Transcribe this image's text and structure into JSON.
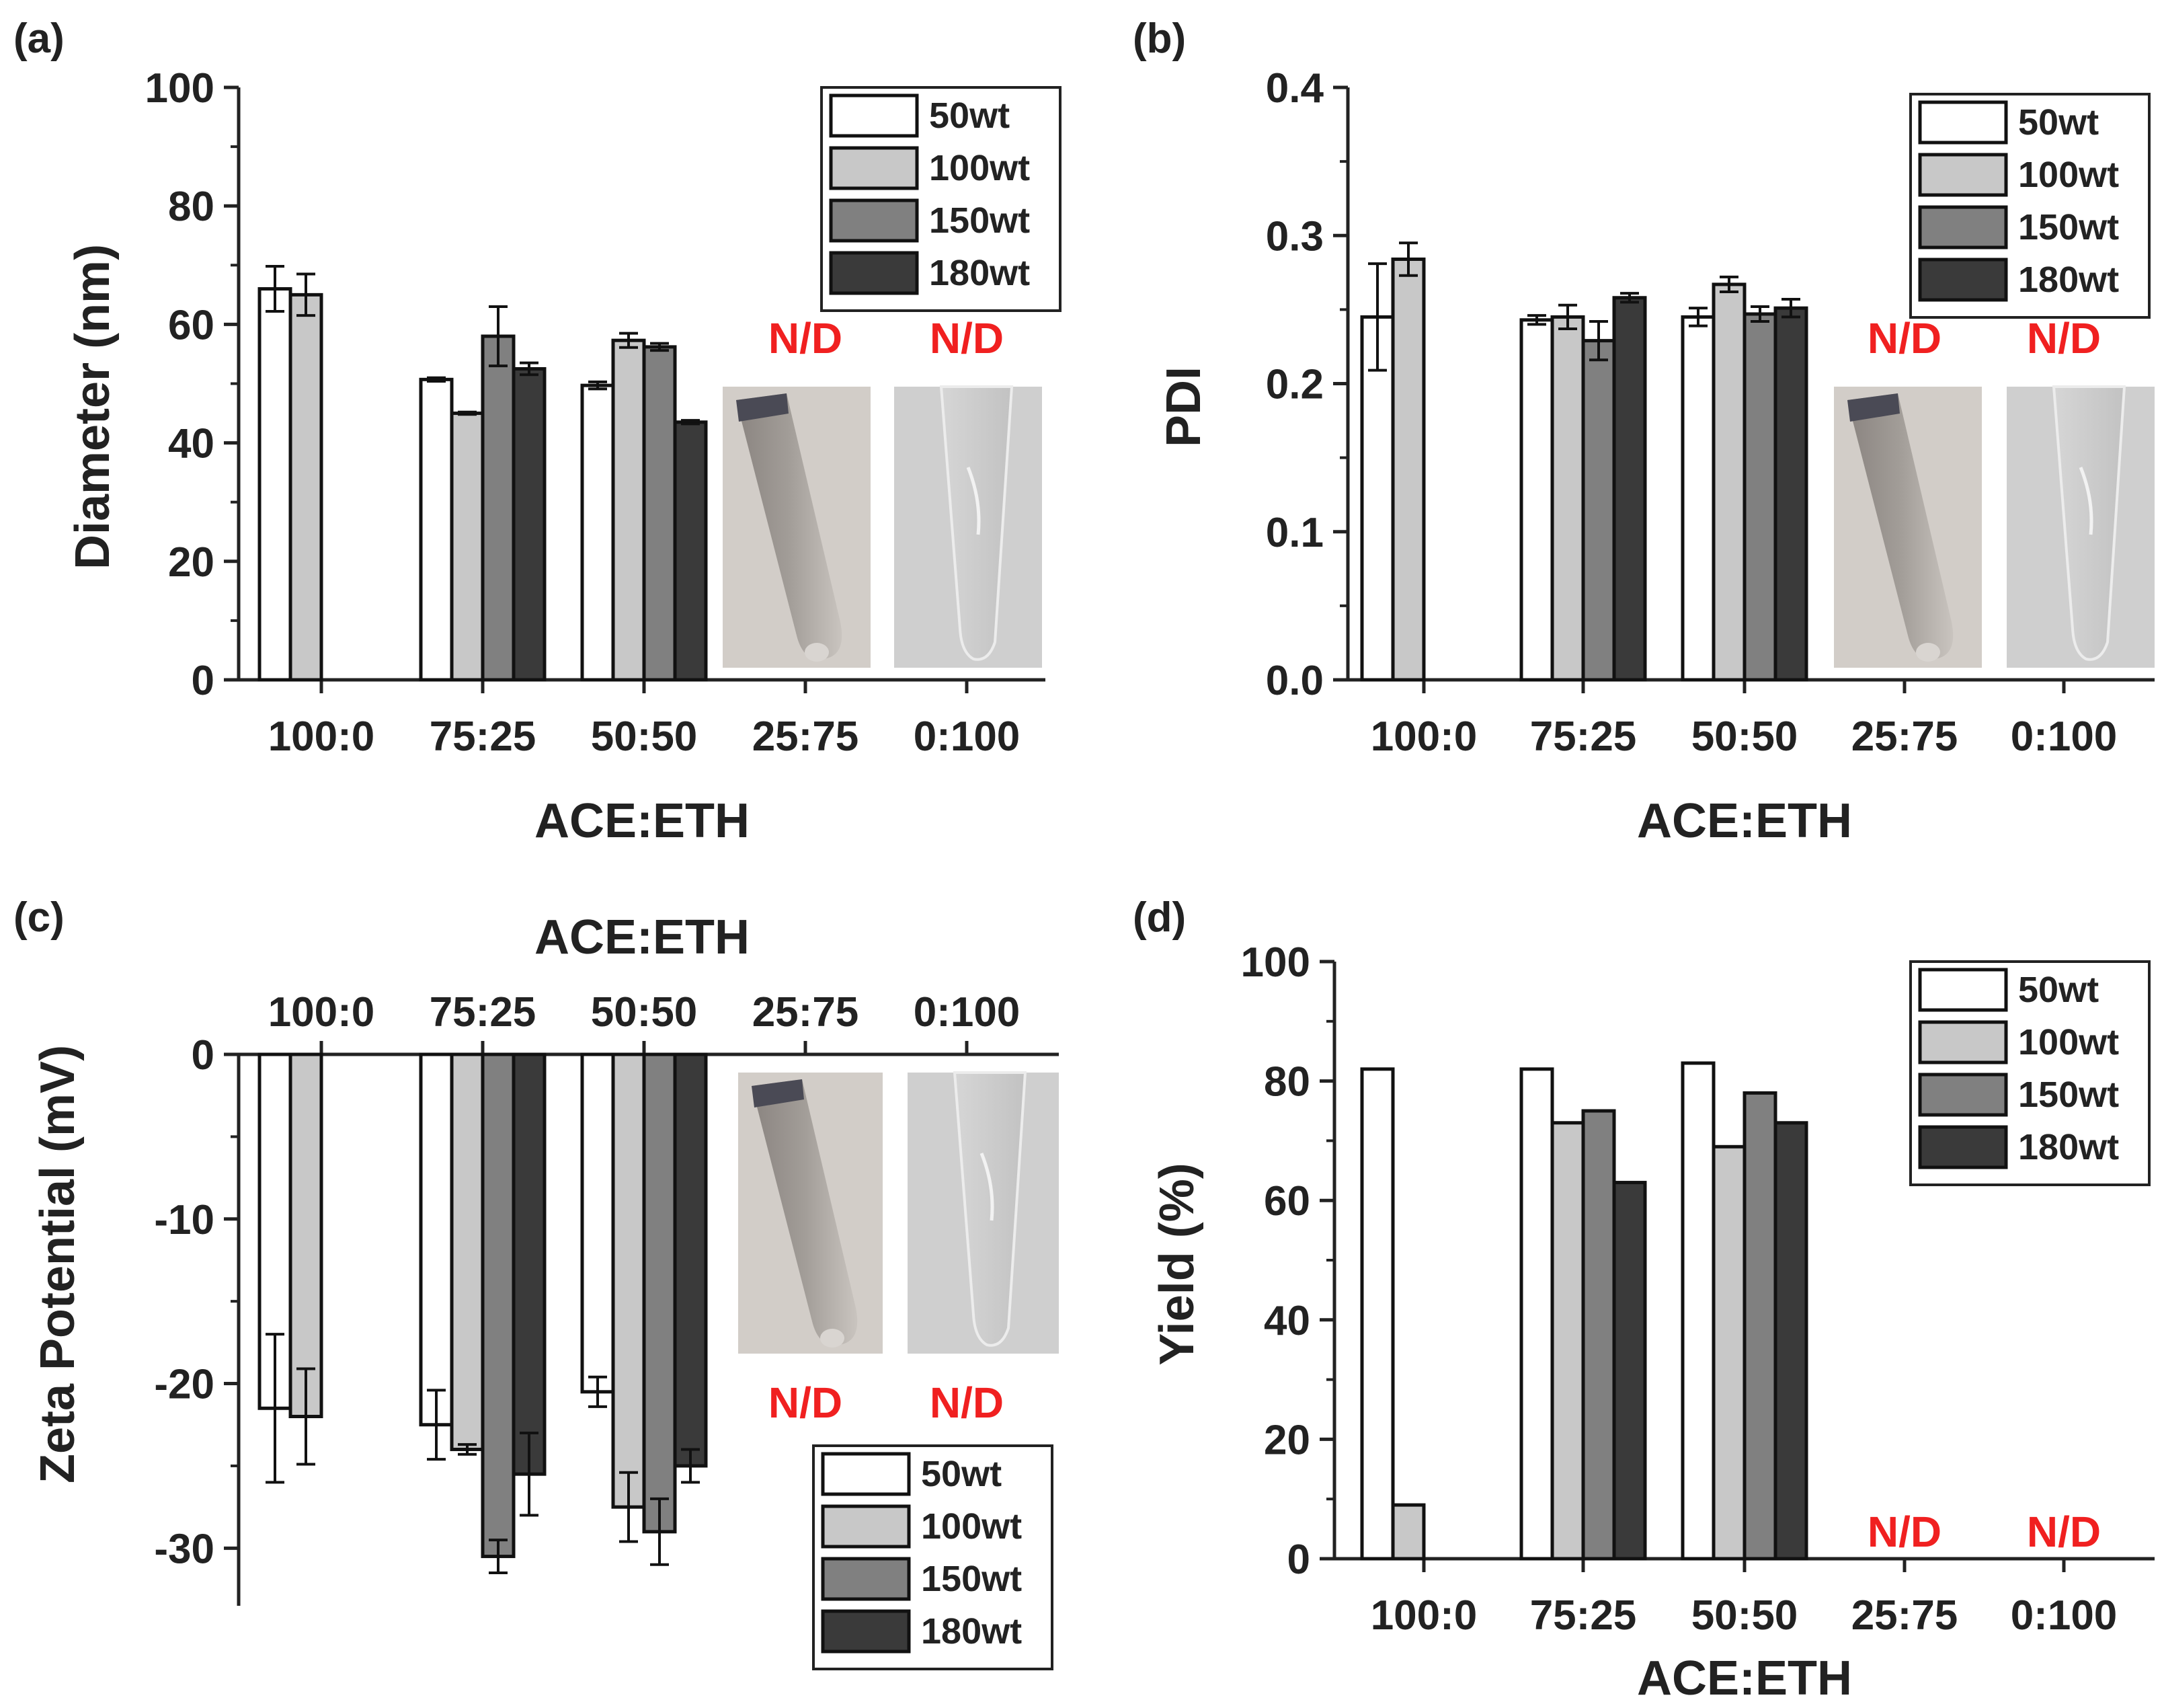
{
  "figure": {
    "series_colors": [
      "#ffffff",
      "#c8c8c8",
      "#808080",
      "#3a3a3a"
    ],
    "na_color": "#f02020"
  },
  "chart_data": [
    {
      "panel": "(a)",
      "type": "bar",
      "xlabel": "ACE:ETH",
      "ylabel": "Diameter (nm)",
      "ylim": [
        0,
        100
      ],
      "yticks": [
        0,
        20,
        40,
        60,
        80,
        100
      ],
      "categories": [
        "100:0",
        "75:25",
        "50:50",
        "25:75",
        "0:100"
      ],
      "series": [
        {
          "name": "50wt",
          "values": [
            66,
            50.7,
            49.7,
            null,
            null
          ],
          "errors": [
            3.8,
            0.3,
            0.6,
            null,
            null
          ]
        },
        {
          "name": "100wt",
          "values": [
            65,
            45,
            57.3,
            null,
            null
          ],
          "errors": [
            3.5,
            0.2,
            1.2,
            null,
            null
          ]
        },
        {
          "name": "150wt",
          "values": [
            null,
            58,
            56.2,
            null,
            null
          ],
          "errors": [
            null,
            5,
            0.6,
            null,
            null
          ]
        },
        {
          "name": "180wt",
          "values": [
            null,
            52.5,
            43.5,
            null,
            null
          ],
          "errors": [
            null,
            1,
            0.3,
            null,
            null
          ]
        }
      ],
      "not_detected": [
        {
          "category": "25:75",
          "label": "N/D"
        },
        {
          "category": "0:100",
          "label": "N/D"
        }
      ],
      "legend": [
        "50wt",
        "100wt",
        "150wt",
        "180wt"
      ],
      "legend_position": "top-right",
      "tube_photos": [
        {
          "category": "25:75",
          "description": "turbid tube"
        },
        {
          "category": "0:100",
          "description": "clear tube"
        }
      ]
    },
    {
      "panel": "(b)",
      "type": "bar",
      "xlabel": "ACE:ETH",
      "ylabel": "PDI",
      "ylim": [
        0,
        0.4
      ],
      "yticks": [
        0.0,
        0.1,
        0.2,
        0.3,
        0.4
      ],
      "ytick_labels": [
        "0.0",
        "0.1",
        "0.2",
        "0.3",
        "0.4"
      ],
      "categories": [
        "100:0",
        "75:25",
        "50:50",
        "25:75",
        "0:100"
      ],
      "series": [
        {
          "name": "50wt",
          "values": [
            0.245,
            0.243,
            0.245,
            null,
            null
          ],
          "errors": [
            0.036,
            0.003,
            0.006,
            null,
            null
          ]
        },
        {
          "name": "100wt",
          "values": [
            0.284,
            0.245,
            0.267,
            null,
            null
          ],
          "errors": [
            0.011,
            0.008,
            0.005,
            null,
            null
          ]
        },
        {
          "name": "150wt",
          "values": [
            null,
            0.229,
            0.247,
            null,
            null
          ],
          "errors": [
            null,
            0.013,
            0.005,
            null,
            null
          ]
        },
        {
          "name": "180wt",
          "values": [
            null,
            0.258,
            0.251,
            null,
            null
          ],
          "errors": [
            null,
            0.003,
            0.006,
            null,
            null
          ]
        }
      ],
      "not_detected": [
        {
          "category": "25:75",
          "label": "N/D"
        },
        {
          "category": "0:100",
          "label": "N/D"
        }
      ],
      "legend": [
        "50wt",
        "100wt",
        "150wt",
        "180wt"
      ],
      "legend_position": "top-right"
    },
    {
      "panel": "(c)",
      "type": "bar",
      "xlabel": "ACE:ETH",
      "xlabel_position": "top",
      "ylabel": "Zeta Potential (mV)",
      "ylim": [
        -33.5,
        0
      ],
      "yticks": [
        0,
        -10,
        -20,
        -30
      ],
      "categories": [
        "100:0",
        "75:25",
        "50:50",
        "25:75",
        "0:100"
      ],
      "series": [
        {
          "name": "50wt",
          "values": [
            -21.5,
            -22.5,
            -20.5,
            null,
            null
          ],
          "errors": [
            4.5,
            2.1,
            0.9,
            null,
            null
          ]
        },
        {
          "name": "100wt",
          "values": [
            -22,
            -24,
            -27.5,
            null,
            null
          ],
          "errors": [
            2.9,
            0.3,
            2.1,
            null,
            null
          ]
        },
        {
          "name": "150wt",
          "values": [
            null,
            -30.5,
            -29,
            null,
            null
          ],
          "errors": [
            null,
            1.0,
            2.0,
            null,
            null
          ]
        },
        {
          "name": "180wt",
          "values": [
            null,
            -25.5,
            -25,
            null,
            null
          ],
          "errors": [
            null,
            2.5,
            1.0,
            null,
            null
          ]
        }
      ],
      "not_detected": [
        {
          "category": "25:75",
          "label": "N/D"
        },
        {
          "category": "0:100",
          "label": "N/D"
        }
      ],
      "legend": [
        "50wt",
        "100wt",
        "150wt",
        "180wt"
      ],
      "legend_position": "bottom-right"
    },
    {
      "panel": "(d)",
      "type": "bar",
      "xlabel": "ACE:ETH",
      "ylabel": "Yield (%)",
      "ylim": [
        0,
        100
      ],
      "yticks": [
        0,
        20,
        40,
        60,
        80,
        100
      ],
      "categories": [
        "100:0",
        "75:25",
        "50:50",
        "25:75",
        "0:100"
      ],
      "series": [
        {
          "name": "50wt",
          "values": [
            82,
            82,
            83,
            null,
            null
          ]
        },
        {
          "name": "100wt",
          "values": [
            9,
            73,
            69,
            null,
            null
          ]
        },
        {
          "name": "150wt",
          "values": [
            null,
            75,
            78,
            null,
            null
          ]
        },
        {
          "name": "180wt",
          "values": [
            null,
            63,
            73,
            null,
            null
          ]
        }
      ],
      "not_detected": [
        {
          "category": "25:75",
          "label": "N/D"
        },
        {
          "category": "0:100",
          "label": "N/D"
        }
      ],
      "legend": [
        "50wt",
        "100wt",
        "150wt",
        "180wt"
      ],
      "legend_position": "top-right"
    }
  ]
}
